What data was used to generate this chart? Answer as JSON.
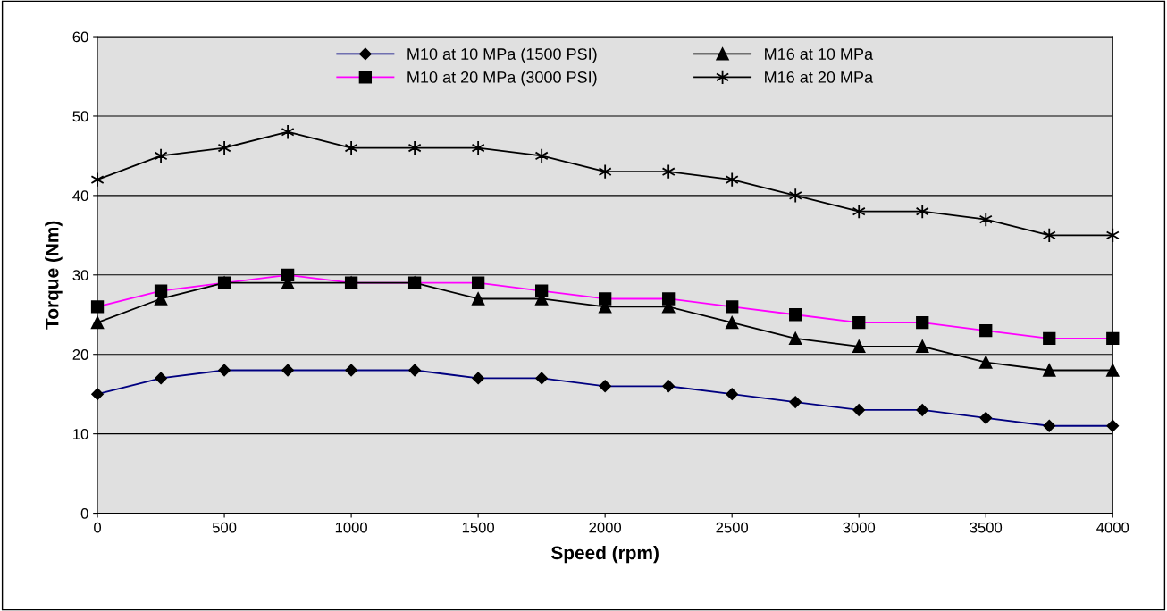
{
  "chart_data": {
    "type": "line",
    "xlabel": "Speed (rpm)",
    "ylabel": "Torque (Nm)",
    "x": [
      0,
      250,
      500,
      750,
      1000,
      1250,
      1500,
      1750,
      2000,
      2250,
      2500,
      2750,
      3000,
      3250,
      3500,
      3750,
      4000
    ],
    "series": [
      {
        "name": "M10 at 10 MPa (1500 PSI)",
        "color": "#000080",
        "marker": "diamond",
        "values": [
          15,
          17,
          18,
          18,
          18,
          18,
          17,
          17,
          16,
          16,
          15,
          14,
          13,
          13,
          12,
          11,
          11
        ]
      },
      {
        "name": "M10 at 20 MPa (3000 PSI)",
        "color": "#ff00ff",
        "marker": "square",
        "values": [
          26,
          28,
          29,
          30,
          29,
          29,
          29,
          28,
          27,
          27,
          26,
          25,
          24,
          24,
          23,
          22,
          22
        ]
      },
      {
        "name": "M16 at 10 MPa",
        "color": "#000000",
        "marker": "triangle",
        "values": [
          24,
          27,
          29,
          29,
          29,
          29,
          27,
          27,
          26,
          26,
          24,
          22,
          21,
          21,
          19,
          18,
          18
        ]
      },
      {
        "name": "M16 at 20 MPa",
        "color": "#000000",
        "marker": "cross",
        "values": [
          42,
          45,
          46,
          48,
          46,
          46,
          46,
          45,
          43,
          43,
          42,
          40,
          38,
          38,
          37,
          35,
          35
        ]
      }
    ],
    "xlim": [
      0,
      4000
    ],
    "xticks": [
      0,
      500,
      1000,
      1500,
      2000,
      2500,
      3000,
      3500,
      4000
    ],
    "ylim": [
      0,
      60
    ],
    "yticks": [
      0,
      10,
      20,
      30,
      40,
      50,
      60
    ],
    "grid": "y",
    "legend": "top",
    "line_style": "solid"
  }
}
